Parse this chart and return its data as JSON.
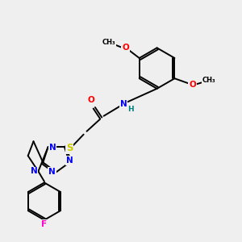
{
  "background_color": "#efefef",
  "atoms": {
    "C": "#000000",
    "N": "#0000ff",
    "O": "#ff0000",
    "S": "#cccc00",
    "F": "#ff00cc",
    "H": "#008080"
  },
  "bond_lw": 1.4
}
